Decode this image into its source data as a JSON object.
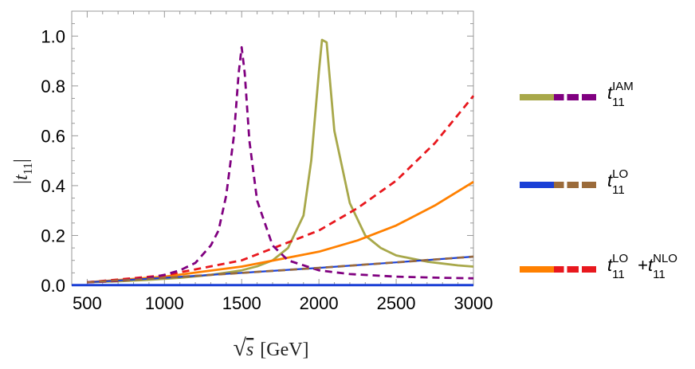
{
  "chart_data": {
    "type": "line",
    "title": "",
    "xlabel": "√s [GeV]",
    "xlabel_sqrt": "√",
    "xlabel_var": "s",
    "xlabel_unit": "[GeV]",
    "ylabel": "|t11|",
    "xlim": [
      400,
      3000
    ],
    "ylim": [
      0,
      1.1
    ],
    "x_ticks": [
      500,
      1000,
      1500,
      2000,
      2500,
      3000
    ],
    "x_tick_labels": [
      "500",
      "1000",
      "1500",
      "2000",
      "2500",
      "3000"
    ],
    "y_ticks": [
      0.0,
      0.2,
      0.4,
      0.6,
      0.8,
      1.0
    ],
    "y_tick_labels": [
      "0.0",
      "0.2",
      "0.4",
      "0.6",
      "0.8",
      "1.0"
    ],
    "legend_position": "right",
    "series": [
      {
        "name": "IAM (solid)",
        "color": "#a8a84a",
        "dash": "solid",
        "x": [
          500,
          700,
          900,
          1100,
          1300,
          1500,
          1600,
          1700,
          1800,
          1900,
          1950,
          2000,
          2020,
          2050,
          2100,
          2200,
          2300,
          2400,
          2500,
          2700,
          2900,
          3000
        ],
        "y": [
          0.012,
          0.016,
          0.022,
          0.03,
          0.042,
          0.06,
          0.076,
          0.1,
          0.15,
          0.28,
          0.5,
          0.86,
          0.985,
          0.975,
          0.62,
          0.33,
          0.2,
          0.15,
          0.12,
          0.095,
          0.08,
          0.075
        ]
      },
      {
        "name": "IAM (dashed)",
        "color": "#800080",
        "dash": "dashed",
        "x": [
          500,
          700,
          900,
          1000,
          1100,
          1200,
          1300,
          1350,
          1400,
          1450,
          1480,
          1500,
          1520,
          1550,
          1600,
          1700,
          1800,
          2000,
          2200,
          2500,
          2800,
          3000
        ],
        "y": [
          0.012,
          0.018,
          0.03,
          0.042,
          0.06,
          0.09,
          0.16,
          0.22,
          0.36,
          0.6,
          0.85,
          0.955,
          0.85,
          0.58,
          0.34,
          0.16,
          0.1,
          0.06,
          0.045,
          0.035,
          0.03,
          0.028
        ]
      },
      {
        "name": "LO (solid)",
        "color": "#1a3fd6",
        "dash": "solid",
        "x": [
          400,
          3000
        ],
        "y": [
          0.001,
          0.001
        ]
      },
      {
        "name": "LO (dashed)",
        "color": "#9b6b3a",
        "dash": "dashed",
        "x": [
          500,
          1000,
          1500,
          2000,
          2500,
          3000
        ],
        "y": [
          0.012,
          0.03,
          0.05,
          0.07,
          0.092,
          0.115
        ]
      },
      {
        "name": "LO+NLO (solid)",
        "color": "#ff8000",
        "dash": "solid",
        "x": [
          500,
          1000,
          1500,
          2000,
          2250,
          2500,
          2750,
          3000
        ],
        "y": [
          0.012,
          0.035,
          0.075,
          0.135,
          0.18,
          0.24,
          0.32,
          0.415
        ]
      },
      {
        "name": "LO+NLO (dashed)",
        "color": "#e8181e",
        "dash": "dashed",
        "x": [
          500,
          1000,
          1500,
          2000,
          2250,
          2500,
          2750,
          3000
        ],
        "y": [
          0.012,
          0.04,
          0.1,
          0.22,
          0.31,
          0.42,
          0.57,
          0.76
        ]
      },
      {
        "name": "LO solid overlay",
        "color": "#1a3fd6",
        "dash": "solid",
        "x": [
          500,
          1000,
          1500,
          2000,
          2500,
          3000
        ],
        "y": [
          0.012,
          0.03,
          0.05,
          0.07,
          0.092,
          0.115
        ]
      }
    ]
  },
  "legend": [
    {
      "id": "iam",
      "base": "t",
      "sub": "11",
      "sup": "IAM",
      "color_solid": "#a8a84a",
      "color_dashed": "#800080"
    },
    {
      "id": "lo",
      "base": "t",
      "sub": "11",
      "sup": "LO",
      "color_solid": "#1a3fd6",
      "color_dashed": "#9b6b3a"
    },
    {
      "id": "lonlo",
      "base": "t",
      "sub": "11",
      "sup": "LO",
      "plus": "+",
      "base2": "t",
      "sub2": "11",
      "sup2": "NLO",
      "color_solid": "#ff8000",
      "color_dashed": "#e8181e"
    }
  ],
  "ylabel_parts": {
    "bar": "|",
    "base": "t",
    "sub": "11"
  }
}
